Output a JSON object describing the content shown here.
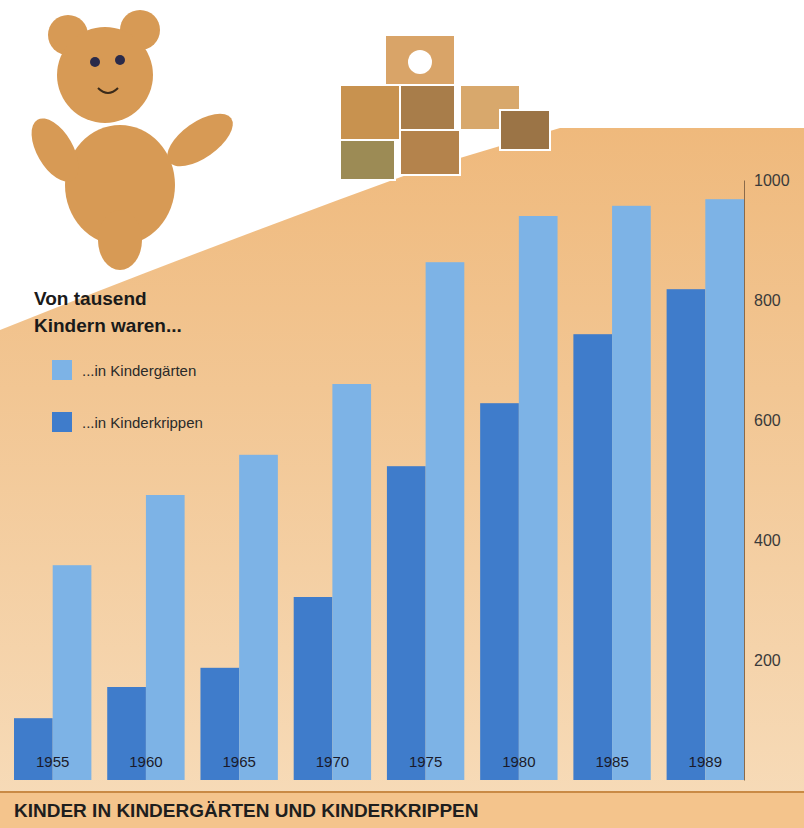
{
  "chart_data": {
    "type": "bar",
    "title": "KINDER IN KINDERGÄRTEN UND KINDERKRIPPEN",
    "subtitle": "Von tausend Kindern waren...",
    "categories": [
      "1955",
      "1960",
      "1965",
      "1970",
      "1975",
      "1980",
      "1985",
      "1989"
    ],
    "series": [
      {
        "name": "...in Kinderkrippen",
        "color": "#3f7ccb",
        "values": [
          103,
          155,
          187,
          305,
          523,
          628,
          743,
          818
        ]
      },
      {
        "name": "...in Kindergärten",
        "color": "#7db3e6",
        "values": [
          358,
          475,
          542,
          660,
          863,
          940,
          957,
          968
        ]
      }
    ],
    "ylim": [
      0,
      1000
    ],
    "yticks": [
      200,
      400,
      600,
      800,
      1000
    ],
    "grid": false,
    "legend": "top-left"
  }
}
